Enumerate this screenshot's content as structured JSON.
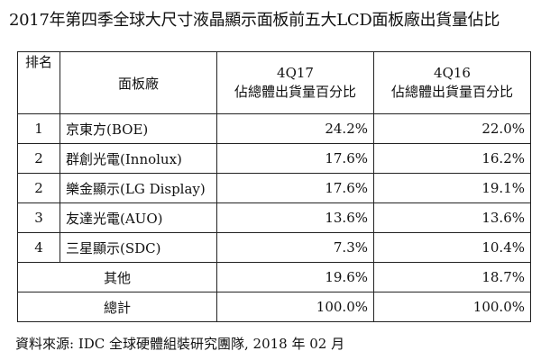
{
  "title": "2017年第四季全球大尺寸液晶顯示面板前五大LCD面板廠出貨量佔比",
  "table": {
    "headers": {
      "rank": "排名",
      "maker": "面板廠",
      "q17_period": "4Q17",
      "q17_metric": "佔總體出貨量百分比",
      "q16_period": "4Q16",
      "q16_metric": "佔總體出貨量百分比"
    },
    "rows": [
      {
        "rank": "1",
        "maker": "京東方(BOE)",
        "q17": "24.2%",
        "q16": "22.0%"
      },
      {
        "rank": "2",
        "maker": "群創光電(Innolux)",
        "q17": "17.6%",
        "q16": "16.2%"
      },
      {
        "rank": "2",
        "maker": "樂金顯示(LG Display)",
        "q17": "17.6%",
        "q16": "19.1%"
      },
      {
        "rank": "3",
        "maker": "友達光電(AUO)",
        "q17": "13.6%",
        "q16": "13.6%"
      },
      {
        "rank": "4",
        "maker": "三星顯示(SDC)",
        "q17": "7.3%",
        "q16": "10.4%"
      }
    ],
    "others": {
      "label": "其他",
      "q17": "19.6%",
      "q16": "18.7%"
    },
    "total": {
      "label": "總計",
      "q17": "100.0%",
      "q16": "100.0%"
    }
  },
  "footnote": "資料來源: IDC 全球硬體組裝研究團隊, 2018 年 02 月"
}
